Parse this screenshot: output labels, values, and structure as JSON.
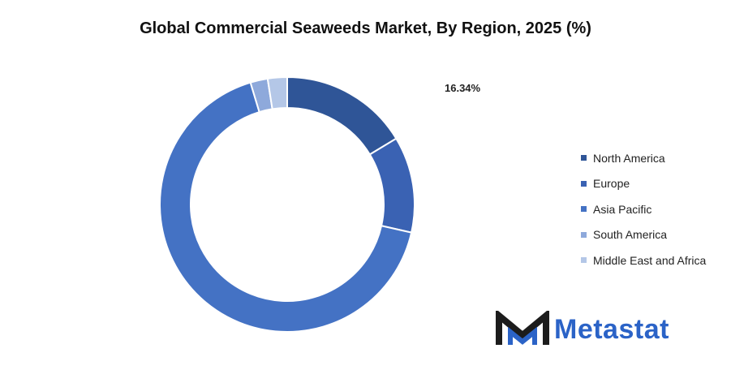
{
  "title": "Global Commercial Seaweeds Market, By Region, 2025 (%)",
  "chart_data": {
    "type": "pie",
    "variant": "donut",
    "title": "Global Commercial Seaweeds Market, By Region, 2025 (%)",
    "categories": [
      "North America",
      "Europe",
      "Asia Pacific",
      "South America",
      "Middle East and Africa"
    ],
    "values": [
      16.34,
      12.2,
      66.8,
      2.2,
      2.46
    ],
    "colors": [
      "#2f5597",
      "#3a62b3",
      "#4472c4",
      "#8ea9db",
      "#b4c7e7"
    ],
    "data_labels": [
      {
        "category": "North America",
        "text": "16.34%"
      }
    ],
    "legend_position": "right"
  },
  "legend": {
    "items": [
      {
        "label": "North America",
        "color": "#2f5597"
      },
      {
        "label": "Europe",
        "color": "#3a62b3"
      },
      {
        "label": "Asia Pacific",
        "color": "#4472c4"
      },
      {
        "label": "South America",
        "color": "#8ea9db"
      },
      {
        "label": "Middle East and Africa",
        "color": "#b4c7e7"
      }
    ]
  },
  "logo": {
    "text": "Metastat",
    "icon": "metastat-logo-icon",
    "color": "#2b63c7"
  }
}
